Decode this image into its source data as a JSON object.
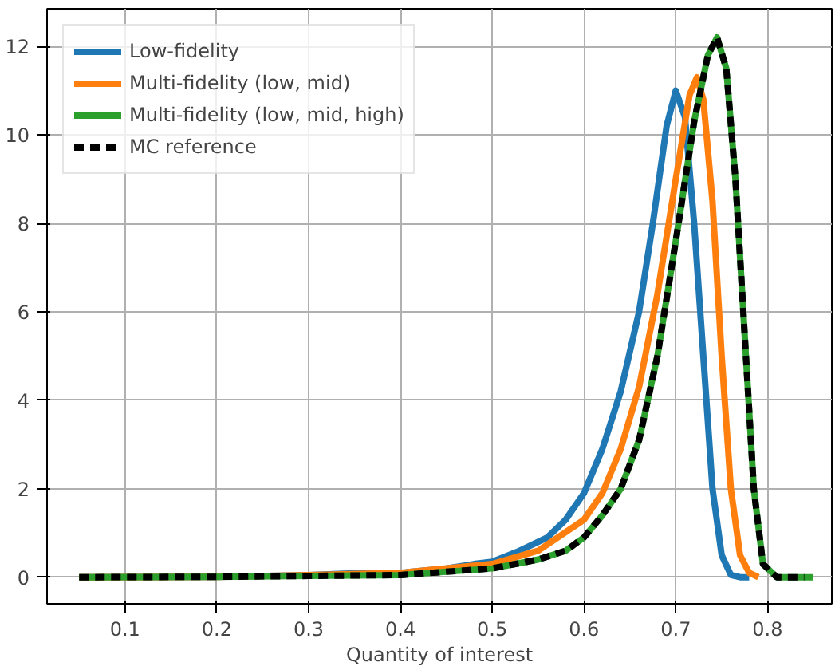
{
  "chart_data": {
    "type": "line",
    "xlabel": "Quantity of interest",
    "xlim": [
      0.015,
      0.87
    ],
    "ylim": [
      -0.6,
      12.85
    ],
    "xticks": [
      0.1,
      0.2,
      0.3,
      0.4,
      0.5,
      0.6,
      0.7,
      0.8
    ],
    "yticks": [
      0,
      2,
      4,
      6,
      8,
      10,
      12
    ],
    "grid": true,
    "legend": "top left",
    "series": [
      {
        "name": "Low-fidelity",
        "color": "#1f77b4",
        "x": [
          0.05,
          0.2,
          0.3,
          0.36,
          0.4,
          0.45,
          0.48,
          0.5,
          0.53,
          0.56,
          0.58,
          0.6,
          0.62,
          0.64,
          0.66,
          0.675,
          0.69,
          0.7,
          0.71,
          0.72,
          0.73,
          0.74,
          0.75,
          0.76,
          0.77,
          0.78
        ],
        "values": [
          0,
          0.01,
          0.05,
          0.1,
          0.1,
          0.2,
          0.3,
          0.35,
          0.6,
          0.9,
          1.3,
          1.9,
          2.9,
          4.2,
          6.0,
          8.0,
          10.2,
          11.0,
          10.4,
          8.0,
          5.0,
          2.0,
          0.5,
          0.05,
          0,
          0
        ]
      },
      {
        "name": "Multi-fidelity (low, mid)",
        "color": "#ff7f0e",
        "x": [
          0.05,
          0.2,
          0.3,
          0.4,
          0.5,
          0.55,
          0.6,
          0.62,
          0.64,
          0.66,
          0.68,
          0.7,
          0.715,
          0.723,
          0.73,
          0.74,
          0.75,
          0.76,
          0.77,
          0.78,
          0.79
        ],
        "values": [
          0,
          0.01,
          0.05,
          0.1,
          0.3,
          0.6,
          1.3,
          1.9,
          2.9,
          4.3,
          6.4,
          9.0,
          10.9,
          11.3,
          10.8,
          8.5,
          5.0,
          2.0,
          0.5,
          0.1,
          0
        ]
      },
      {
        "name": "Multi-fidelity (low, mid, high)",
        "color": "#2ca02c",
        "x": [
          0.05,
          0.2,
          0.3,
          0.4,
          0.5,
          0.55,
          0.58,
          0.6,
          0.62,
          0.64,
          0.66,
          0.68,
          0.7,
          0.72,
          0.735,
          0.745,
          0.755,
          0.765,
          0.775,
          0.785,
          0.795,
          0.81,
          0.85
        ],
        "values": [
          0,
          0.01,
          0.03,
          0.05,
          0.2,
          0.4,
          0.6,
          0.9,
          1.4,
          2.0,
          3.1,
          5.0,
          7.6,
          10.3,
          11.8,
          12.2,
          11.5,
          9.0,
          5.5,
          2.0,
          0.3,
          0,
          0
        ]
      },
      {
        "name": "MC reference",
        "color": "#000000",
        "line_style": "dashed",
        "x": [
          0.05,
          0.2,
          0.3,
          0.4,
          0.5,
          0.55,
          0.58,
          0.6,
          0.62,
          0.64,
          0.66,
          0.68,
          0.7,
          0.72,
          0.735,
          0.745,
          0.755,
          0.765,
          0.775,
          0.785,
          0.795,
          0.81,
          0.84
        ],
        "values": [
          0,
          0.01,
          0.03,
          0.05,
          0.2,
          0.4,
          0.6,
          0.9,
          1.4,
          2.0,
          3.1,
          5.0,
          7.6,
          10.3,
          11.8,
          12.2,
          11.5,
          9.0,
          5.5,
          2.0,
          0.3,
          0,
          0
        ]
      }
    ]
  }
}
